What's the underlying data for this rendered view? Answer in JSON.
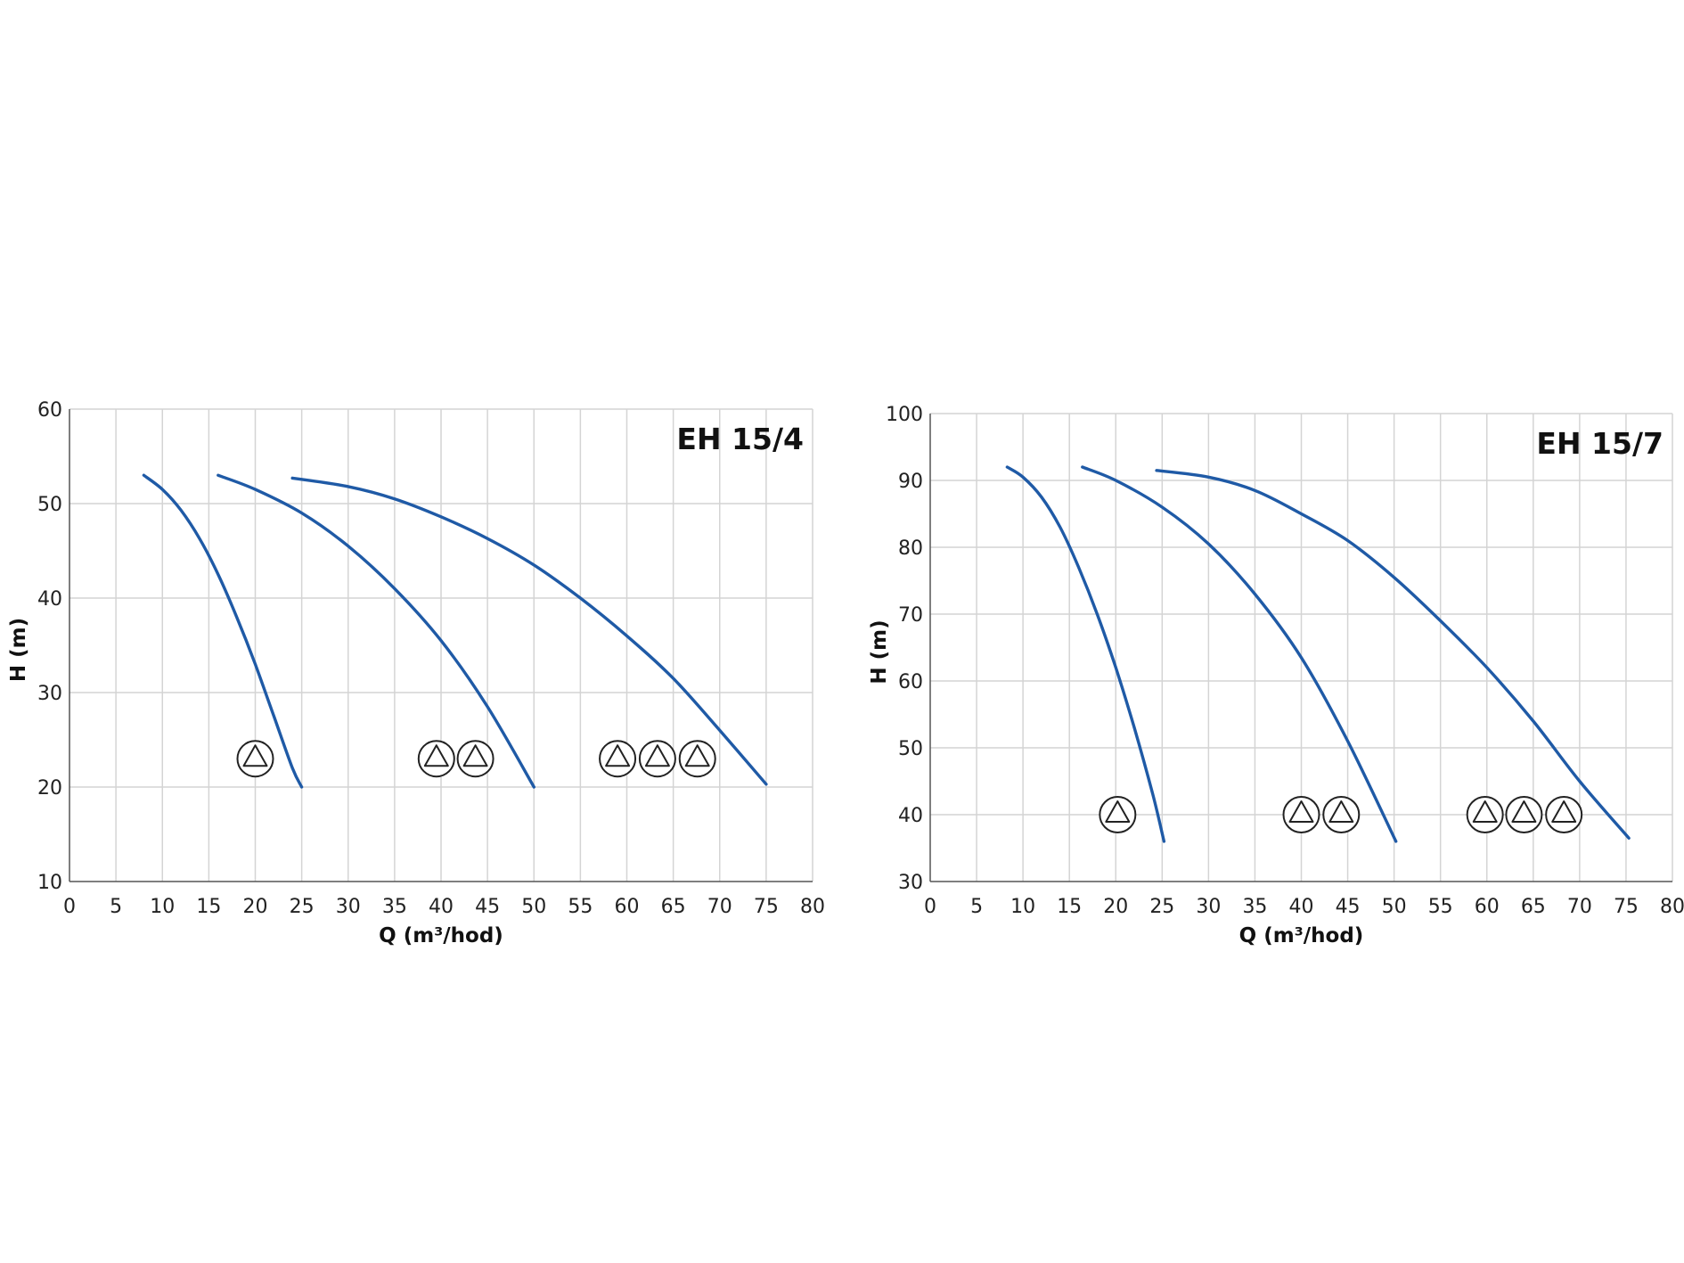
{
  "chart_data": [
    {
      "type": "line",
      "title": "EH 15/4",
      "xlabel": "Q (m³/hod)",
      "ylabel": "H (m)",
      "xlim": [
        0,
        80
      ],
      "ylim": [
        10,
        60
      ],
      "xticks": [
        "0",
        "5",
        "10",
        "15",
        "20",
        "25",
        "30",
        "35",
        "40",
        "45",
        "50",
        "55",
        "60",
        "65",
        "70",
        "75",
        "80"
      ],
      "yticks": [
        "10",
        "20",
        "30",
        "40",
        "50",
        "60"
      ],
      "grid": true,
      "line_color": "#1f5aa6",
      "series": [
        {
          "pumps": 1,
          "x": [
            8,
            10,
            12,
            14,
            16,
            18,
            20,
            22,
            24,
            25
          ],
          "y": [
            53,
            51.5,
            49.3,
            46.3,
            42.5,
            38,
            33,
            27.5,
            22,
            20
          ]
        },
        {
          "pumps": 2,
          "x": [
            16,
            20,
            25,
            30,
            35,
            40,
            45,
            50
          ],
          "y": [
            53,
            51.5,
            49,
            45.5,
            41,
            35.5,
            28.5,
            20
          ]
        },
        {
          "pumps": 3,
          "x": [
            24,
            30,
            35,
            40,
            45,
            50,
            55,
            60,
            65,
            70,
            75
          ],
          "y": [
            52.7,
            51.8,
            50.5,
            48.6,
            46.3,
            43.5,
            40,
            36,
            31.5,
            26,
            20.3
          ]
        }
      ],
      "pump_markers": [
        {
          "count": 1,
          "x": [
            20
          ],
          "y": 23
        },
        {
          "count": 2,
          "x": [
            39.5,
            43.7
          ],
          "y": 23
        },
        {
          "count": 3,
          "x": [
            59,
            63.3,
            67.6
          ],
          "y": 23
        }
      ]
    },
    {
      "type": "line",
      "title": "EH 15/7",
      "xlabel": "Q (m³/hod)",
      "ylabel": "H (m)",
      "xlim": [
        0,
        80
      ],
      "ylim": [
        30,
        100
      ],
      "xticks": [
        "0",
        "5",
        "10",
        "15",
        "20",
        "25",
        "30",
        "35",
        "40",
        "45",
        "50",
        "55",
        "60",
        "65",
        "70",
        "75",
        "80"
      ],
      "yticks": [
        "30",
        "40",
        "50",
        "60",
        "70",
        "80",
        "90",
        "100"
      ],
      "grid": true,
      "line_color": "#1f5aa6",
      "series": [
        {
          "pumps": 1,
          "x": [
            8.3,
            10,
            12,
            14,
            16,
            18,
            20,
            22,
            24,
            25.2
          ],
          "y": [
            92,
            90.5,
            87.5,
            83,
            77,
            70,
            62,
            53,
            43,
            36
          ]
        },
        {
          "pumps": 2,
          "x": [
            16.4,
            20,
            25,
            30,
            35,
            40,
            45,
            50.2
          ],
          "y": [
            92,
            90,
            86,
            80.5,
            73,
            63.5,
            51,
            36
          ]
        },
        {
          "pumps": 3,
          "x": [
            24.4,
            30,
            35,
            40,
            45,
            50,
            55,
            60,
            65,
            70,
            75.3
          ],
          "y": [
            91.5,
            90.5,
            88.5,
            85,
            81,
            75.5,
            69,
            62,
            54,
            45,
            36.5
          ]
        }
      ],
      "pump_markers": [
        {
          "count": 1,
          "x": [
            20.2
          ],
          "y": 40
        },
        {
          "count": 2,
          "x": [
            40,
            44.3
          ],
          "y": 40
        },
        {
          "count": 3,
          "x": [
            59.8,
            64,
            68.3
          ],
          "y": 40
        }
      ]
    }
  ]
}
